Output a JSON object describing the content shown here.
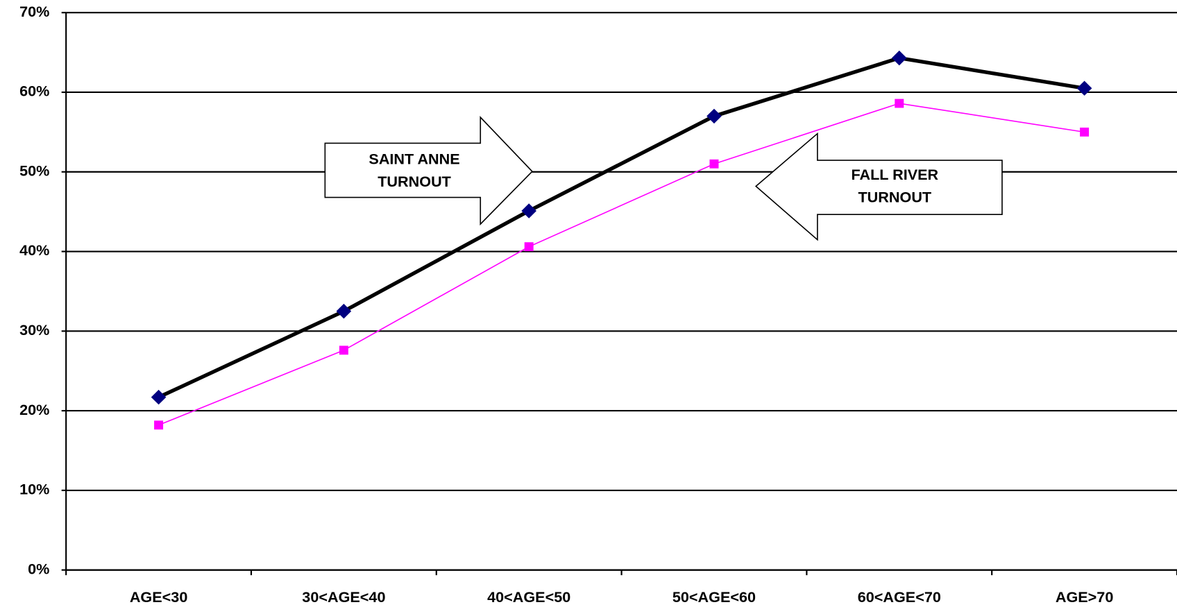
{
  "chart_data": {
    "type": "line",
    "categories": [
      "AGE<30",
      "30<AGE<40",
      "40<AGE<50",
      "50<AGE<60",
      "60<AGE<70",
      "AGE>70"
    ],
    "series": [
      {
        "color": "#000000",
        "marker_color": "#000080",
        "marker": "diamond",
        "values": [
          21.7,
          32.5,
          45.1,
          57.0,
          64.3,
          60.5
        ]
      },
      {
        "color": "#ff00ff",
        "marker_color": "#ff00ff",
        "marker": "square",
        "values": [
          18.2,
          27.6,
          40.6,
          51.0,
          58.6,
          55.0
        ]
      }
    ],
    "ylim": [
      0,
      70
    ],
    "yticks": [
      {
        "value": 0,
        "label": "0%"
      },
      {
        "value": 10,
        "label": "10%"
      },
      {
        "value": 20,
        "label": "20%"
      },
      {
        "value": 30,
        "label": "30%"
      },
      {
        "value": 40,
        "label": "40%"
      },
      {
        "value": 50,
        "label": "50%"
      },
      {
        "value": 60,
        "label": "60%"
      },
      {
        "value": 70,
        "label": "70%"
      }
    ],
    "grid": true,
    "annotations": [
      {
        "lines": [
          "SAINT ANNE",
          "TURNOUT"
        ],
        "direction": "right"
      },
      {
        "lines": [
          "FALL RIVER",
          "TURNOUT"
        ],
        "direction": "left"
      }
    ]
  }
}
